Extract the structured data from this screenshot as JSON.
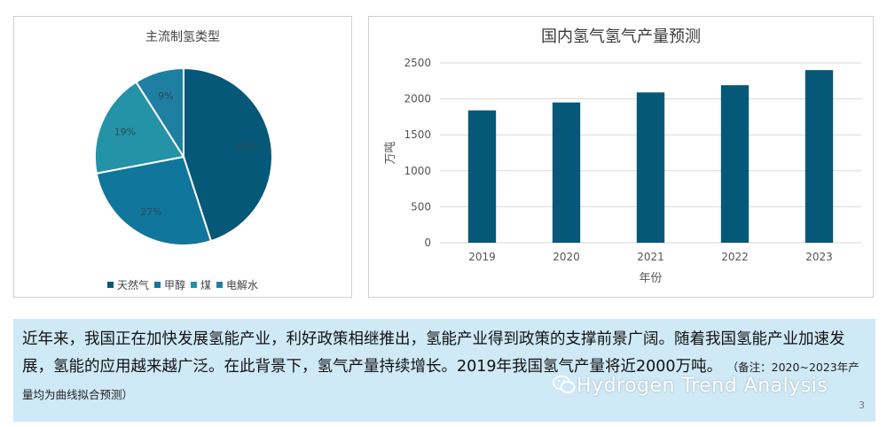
{
  "chart_data": [
    {
      "type": "pie",
      "title": "主流制氢类型",
      "slices": [
        {
          "label": "天然气",
          "value": 45,
          "display": "45%",
          "color": "#065878"
        },
        {
          "label": "甲醇",
          "value": 27,
          "display": "27%",
          "color": "#11769c"
        },
        {
          "label": "煤",
          "value": 19,
          "display": "19%",
          "color": "#2493a8"
        },
        {
          "label": "电解水",
          "value": 9,
          "display": "9%",
          "color": "#1f7fa3"
        }
      ],
      "legend": "bottom"
    },
    {
      "type": "bar",
      "title": "国内氢气氢气产量预测",
      "categories": [
        "2019",
        "2020",
        "2021",
        "2022",
        "2023"
      ],
      "values": [
        1840,
        1950,
        2090,
        2190,
        2400
      ],
      "xlabel": "年份",
      "ylabel": "万吨",
      "ylim": [
        0,
        2500
      ],
      "yticks": [
        "0",
        "500",
        "1000",
        "1500",
        "2000",
        "2500"
      ],
      "grid": true,
      "color": "#065878"
    }
  ],
  "text": {
    "paragraph": "近年来，我国正在加快发展氢能产业，利好政策相继推出，氢能产业得到政策的支撑前景广阔。随着我国氢能产业加速发展，氢能的应用越来越广泛。在此背景下，氢气产量持续增长。2019年我国氢气产量将近2000万吨。",
    "note": "（备注：2020~2023年产量均为曲线拟合预测）"
  },
  "watermark": "Hydrogen Trend Analysis",
  "page_number": "3"
}
